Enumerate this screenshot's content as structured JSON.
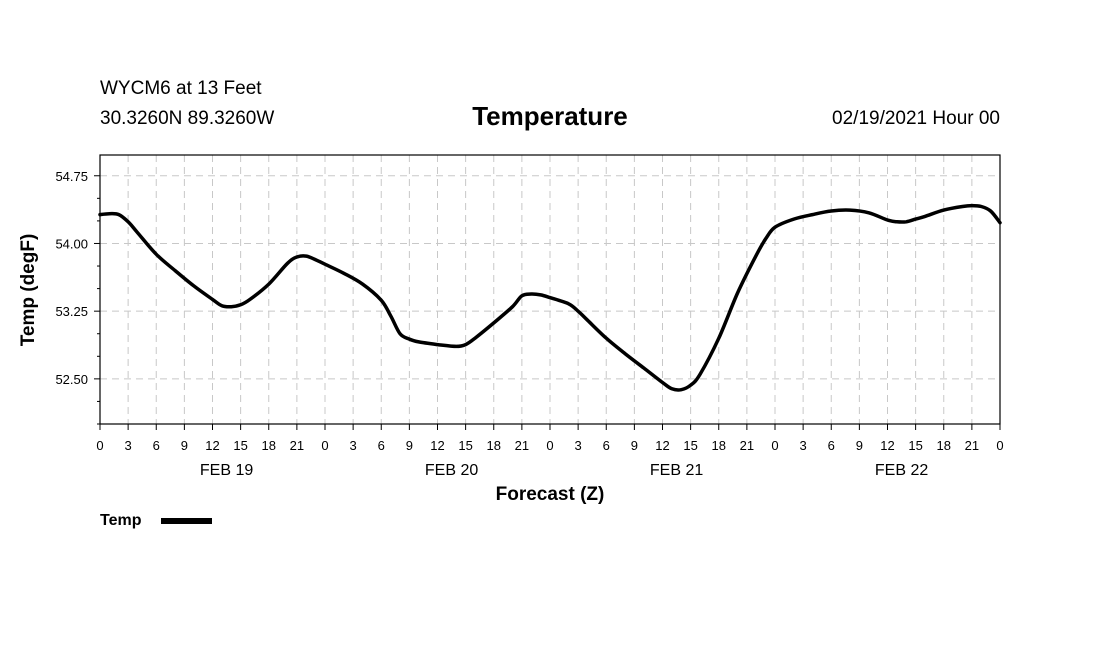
{
  "header": {
    "station": "WYCM6 at 13 Feet",
    "coords": "30.3260N 89.3260W",
    "title": "Temperature",
    "issued": "02/19/2021 Hour 00"
  },
  "chart_data": {
    "type": "line",
    "title": "Temperature",
    "xlabel": "Forecast (Z)",
    "ylabel": "Temp (degF)",
    "ylim": [
      52.0,
      54.98
    ],
    "yticks": [
      52.5,
      53.25,
      54.0,
      54.75
    ],
    "ytick_labels": [
      "52.50",
      "53.25",
      "54.00",
      "54.75"
    ],
    "xlim_hours": [
      0,
      96
    ],
    "xtick_labels": [
      "0",
      "3",
      "6",
      "9",
      "12",
      "15",
      "18",
      "21",
      "0",
      "3",
      "6",
      "9",
      "12",
      "15",
      "18",
      "21",
      "0",
      "3",
      "6",
      "9",
      "12",
      "15",
      "18",
      "21",
      "0",
      "3",
      "6",
      "9",
      "12",
      "15",
      "18",
      "21",
      "0"
    ],
    "day_labels": [
      "FEB 19",
      "FEB 20",
      "FEB 21",
      "FEB 22"
    ],
    "grid": true,
    "legend": "bottom-left",
    "line_color": "#000000",
    "series": [
      {
        "name": "Temp",
        "x": [
          0,
          1,
          2,
          3,
          4,
          6,
          8,
          10,
          12,
          13,
          14,
          15,
          16,
          18,
          20,
          21,
          22,
          23,
          24,
          26,
          28,
          30,
          31,
          32,
          33,
          34,
          36,
          38,
          39,
          40,
          42,
          44,
          45,
          46,
          47,
          48,
          50,
          51,
          52,
          54,
          56,
          58,
          60,
          61,
          62,
          63,
          64,
          66,
          68,
          70,
          71,
          72,
          74,
          76,
          78,
          80,
          82,
          84,
          85,
          86,
          87,
          88,
          90,
          92,
          93,
          94,
          95,
          96
        ],
        "y": [
          54.32,
          54.33,
          54.32,
          54.24,
          54.12,
          53.88,
          53.7,
          53.53,
          53.38,
          53.31,
          53.3,
          53.32,
          53.38,
          53.55,
          53.78,
          53.85,
          53.86,
          53.82,
          53.77,
          53.67,
          53.55,
          53.37,
          53.2,
          53.0,
          52.94,
          52.91,
          52.88,
          52.86,
          52.88,
          52.95,
          53.12,
          53.3,
          53.42,
          53.44,
          53.43,
          53.4,
          53.33,
          53.25,
          53.15,
          52.95,
          52.78,
          52.62,
          52.46,
          52.39,
          52.38,
          52.43,
          52.55,
          52.95,
          53.45,
          53.87,
          54.05,
          54.18,
          54.27,
          54.32,
          54.36,
          54.37,
          54.34,
          54.26,
          54.24,
          54.24,
          54.27,
          54.3,
          54.37,
          54.41,
          54.42,
          54.41,
          54.36,
          54.23
        ]
      }
    ]
  }
}
